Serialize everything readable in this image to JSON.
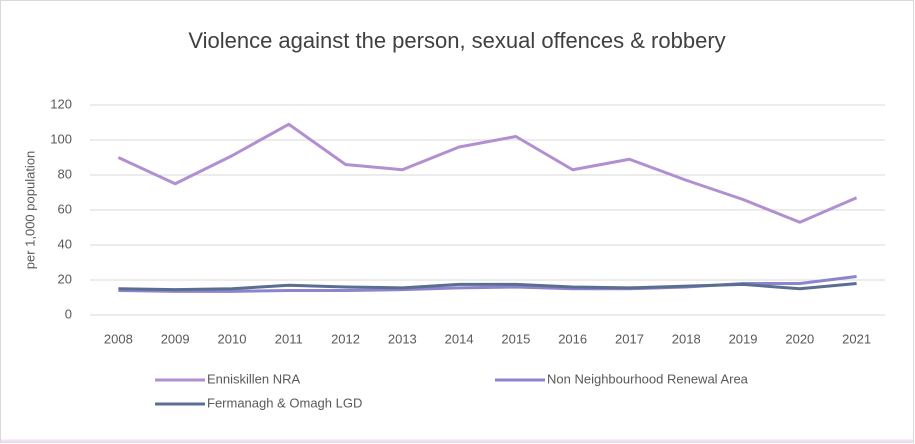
{
  "chart_data": {
    "type": "line",
    "title": "Violence against the person, sexual offences & robbery",
    "y_label": "per 1,000 population",
    "categories": [
      "2008",
      "2009",
      "2010",
      "2011",
      "2012",
      "2013",
      "2014",
      "2015",
      "2016",
      "2017",
      "2018",
      "2019",
      "2020",
      "2021"
    ],
    "series": [
      {
        "name": "Enniskillen NRA",
        "color": "#b28fd0",
        "values": [
          90,
          75,
          91,
          109,
          86,
          83,
          96,
          102,
          83,
          89,
          77,
          66,
          53,
          67
        ]
      },
      {
        "name": "Non Neighbourhood Renewal Area",
        "color": "#8c84cc",
        "values": [
          14,
          13.5,
          13.5,
          14,
          14,
          14.5,
          15.5,
          16,
          15,
          15,
          16,
          18,
          18,
          22
        ]
      },
      {
        "name": "Fermanagh & Omagh LGD",
        "color": "#5a6e92",
        "values": [
          15,
          14.5,
          15,
          17,
          16,
          15.5,
          17.5,
          17.5,
          16,
          15.5,
          16.5,
          17.5,
          15,
          18
        ]
      }
    ],
    "ylim": [
      0,
      120
    ],
    "yticks": [
      0,
      20,
      40,
      60,
      80,
      100,
      120
    ],
    "grid": true
  }
}
